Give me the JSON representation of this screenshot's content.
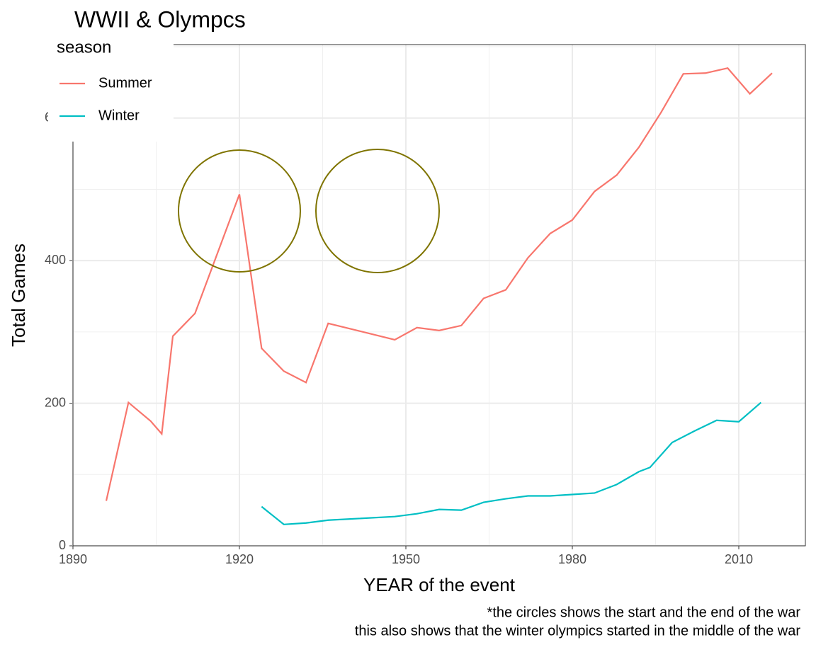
{
  "chart_data": {
    "type": "line",
    "title": "WWII & Olympcs",
    "x_label": "YEAR of the event",
    "y_label": "Total Games",
    "legend_title": "season",
    "caption": [
      "*the circles shows the start and the end of the war",
      "this also shows that the winter olympics started in the middle of the war"
    ],
    "series": [
      {
        "name": "Summer",
        "color": "#F8766D",
        "x": [
          1896,
          1900,
          1904,
          1906,
          1908,
          1912,
          1920,
          1924,
          1928,
          1932,
          1936,
          1948,
          1952,
          1956,
          1960,
          1964,
          1968,
          1972,
          1976,
          1980,
          1984,
          1988,
          1992,
          1996,
          2000,
          2004,
          2008,
          2012,
          2016
        ],
        "values": [
          63,
          201,
          175,
          157,
          294,
          326,
          493,
          277,
          245,
          229,
          312,
          289,
          306,
          302,
          309,
          347,
          359,
          404,
          438,
          457,
          497,
          520,
          559,
          608,
          662,
          663,
          670,
          634,
          663
        ]
      },
      {
        "name": "Winter",
        "color": "#00BFC4",
        "x": [
          1924,
          1928,
          1932,
          1936,
          1948,
          1952,
          1956,
          1960,
          1964,
          1968,
          1972,
          1976,
          1980,
          1984,
          1988,
          1992,
          1994,
          1998,
          2002,
          2006,
          2010,
          2014
        ],
        "values": [
          55,
          30,
          32,
          36,
          41,
          45,
          51,
          50,
          61,
          66,
          70,
          70,
          72,
          74,
          86,
          104,
          110,
          145,
          161,
          176,
          174,
          201
        ]
      }
    ],
    "xlim": [
      1890,
      2022
    ],
    "xticks": [
      1890,
      1920,
      1950,
      1980,
      2010
    ],
    "xminor": [
      1905,
      1935,
      1965,
      1995
    ],
    "ylim": [
      0,
      703
    ],
    "yticks": [
      0,
      200,
      400,
      600
    ],
    "yminor": [
      100,
      300,
      500,
      700
    ],
    "grid": true
  }
}
